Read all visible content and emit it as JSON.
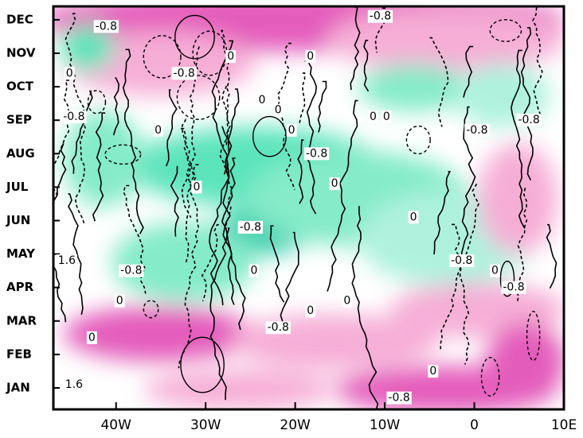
{
  "chart_data": {
    "type": "contour",
    "categories": [
      "JAN",
      "FEB",
      "MAR",
      "APR",
      "MAY",
      "JUN",
      "JUL",
      "AUG",
      "SEP",
      "OCT",
      "NOV",
      "DEC"
    ],
    "xlim": [
      -47,
      10
    ],
    "xticks": [
      {
        "value": -40,
        "label": "40W"
      },
      {
        "value": -30,
        "label": "30W"
      },
      {
        "value": -20,
        "label": "20W"
      },
      {
        "value": -10,
        "label": "10W"
      },
      0,
      {
        "value": 10,
        "label": "10E"
      }
    ],
    "contour_labels": [
      {
        "level": -0.8,
        "x": -41.1,
        "y": 10.8
      },
      {
        "level": -0.8,
        "x": -10.5,
        "y": 11.1
      },
      {
        "level": 0,
        "x": -27.2,
        "y": 9.9
      },
      {
        "level": 0,
        "x": -18.3,
        "y": 9.9
      },
      {
        "level": -0.8,
        "x": -32.4,
        "y": 9.4
      },
      {
        "level": 0,
        "x": -45.2,
        "y": 9.4
      },
      {
        "level": 0,
        "x": -23.7,
        "y": 8.6
      },
      {
        "level": 0,
        "x": -21.9,
        "y": 8.3
      },
      {
        "level": -0.8,
        "x": -44.7,
        "y": 8.1
      },
      {
        "level": 0,
        "x": -35.3,
        "y": 7.7
      },
      {
        "level": 0,
        "x": -20.4,
        "y": 7.7
      },
      {
        "level": 0,
        "x": -11.3,
        "y": 8.1
      },
      {
        "level": 0,
        "x": -9.8,
        "y": 8.1
      },
      {
        "level": -0.8,
        "x": 0.3,
        "y": 7.7
      },
      {
        "level": -0.8,
        "x": 6.1,
        "y": 8.0
      },
      {
        "level": -0.8,
        "x": -17.6,
        "y": 7.0
      },
      {
        "level": 0,
        "x": -31.0,
        "y": 6.0
      },
      {
        "level": 0,
        "x": -15.6,
        "y": 6.1
      },
      {
        "level": 0,
        "x": -6.8,
        "y": 5.1
      },
      {
        "level": -0.8,
        "x": -25.0,
        "y": 4.8
      },
      {
        "level": 1.6,
        "x": -45.5,
        "y": 3.8
      },
      {
        "level": -0.8,
        "x": -38.3,
        "y": 3.5
      },
      {
        "level": 0,
        "x": -24.6,
        "y": 3.5
      },
      {
        "level": -0.8,
        "x": -1.4,
        "y": 3.8
      },
      {
        "level": 0,
        "x": 2.3,
        "y": 3.5
      },
      {
        "level": -0.8,
        "x": 4.4,
        "y": 3.0
      },
      {
        "level": 0,
        "x": -39.6,
        "y": 2.6
      },
      {
        "level": 0,
        "x": -18.3,
        "y": 2.3
      },
      {
        "level": 0,
        "x": -14.2,
        "y": 2.6
      },
      {
        "level": -0.8,
        "x": -21.9,
        "y": 1.8
      },
      {
        "level": 0,
        "x": -42.7,
        "y": 1.5
      },
      {
        "level": 0,
        "x": -4.6,
        "y": 0.5
      },
      {
        "level": 1.6,
        "x": -44.7,
        "y": 0.1
      },
      {
        "level": -0.8,
        "x": -8.4,
        "y": -0.3
      }
    ]
  }
}
